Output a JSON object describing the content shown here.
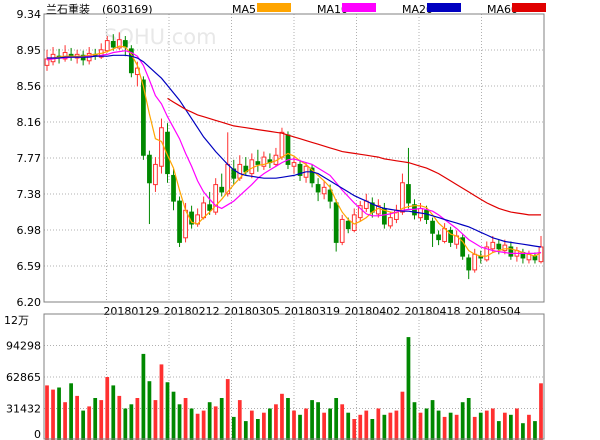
{
  "header": {
    "stock_name": "兰石重装",
    "stock_code": "(603169)",
    "watermark": "SOHU.com"
  },
  "legend": [
    {
      "label": "MA5",
      "color": "#ffa500"
    },
    {
      "label": "MA10",
      "color": "#ff00ff"
    },
    {
      "label": "MA20",
      "color": "#0000c0"
    },
    {
      "label": "MA60",
      "color": "#e00000"
    }
  ],
  "colors": {
    "up": "#ff3030",
    "down": "#008800",
    "grid": "#b0b0b0",
    "border": "#808080"
  },
  "chart_data": [
    {
      "type": "candlestick",
      "y_ticks": [
        "9.34",
        "8.95",
        "8.56",
        "8.16",
        "7.77",
        "7.38",
        "6.98",
        "6.59",
        "6.20"
      ],
      "ylim": [
        6.2,
        9.34
      ],
      "x_ticks": [
        "20180129",
        "20180212",
        "20180305",
        "20180319",
        "20180402",
        "20180418",
        "20180504"
      ],
      "x_tick_index": [
        14,
        24,
        34,
        44,
        54,
        64,
        74
      ],
      "candles": [
        [
          8.78,
          8.85,
          8.95,
          8.72
        ],
        [
          8.82,
          8.9,
          8.98,
          8.78
        ],
        [
          8.88,
          8.86,
          8.96,
          8.8
        ],
        [
          8.85,
          8.92,
          9.0,
          8.82
        ],
        [
          8.9,
          8.88,
          8.97,
          8.83
        ],
        [
          8.86,
          8.9,
          8.95,
          8.8
        ],
        [
          8.89,
          8.84,
          8.94,
          8.78
        ],
        [
          8.83,
          8.91,
          8.98,
          8.79
        ],
        [
          8.9,
          8.88,
          8.96,
          8.84
        ],
        [
          8.87,
          8.95,
          9.02,
          8.85
        ],
        [
          8.94,
          9.05,
          9.1,
          8.92
        ],
        [
          9.04,
          8.98,
          9.12,
          8.94
        ],
        [
          8.97,
          9.06,
          9.14,
          8.95
        ],
        [
          9.05,
          8.98,
          9.1,
          8.88
        ],
        [
          8.96,
          8.7,
          9.0,
          8.65
        ],
        [
          8.68,
          8.75,
          8.82,
          8.55
        ],
        [
          8.62,
          7.8,
          8.66,
          7.75
        ],
        [
          7.8,
          7.5,
          7.85,
          7.05
        ],
        [
          7.48,
          7.7,
          7.78,
          7.4
        ],
        [
          7.68,
          8.1,
          8.2,
          7.6
        ],
        [
          8.05,
          7.6,
          8.15,
          7.5
        ],
        [
          7.58,
          7.3,
          7.65,
          7.2
        ],
        [
          7.3,
          6.85,
          7.35,
          6.8
        ],
        [
          6.9,
          7.2,
          7.28,
          6.85
        ],
        [
          7.18,
          7.05,
          7.25,
          7.0
        ],
        [
          7.05,
          7.15,
          7.22,
          7.02
        ],
        [
          7.12,
          7.28,
          7.35,
          7.1
        ],
        [
          7.26,
          7.2,
          7.4,
          7.15
        ],
        [
          7.18,
          7.48,
          7.55,
          7.15
        ],
        [
          7.45,
          7.4,
          7.6,
          7.35
        ],
        [
          7.38,
          7.7,
          8.05,
          7.35
        ],
        [
          7.65,
          7.55,
          7.75,
          7.48
        ],
        [
          7.55,
          7.7,
          7.8,
          7.52
        ],
        [
          7.68,
          7.62,
          7.78,
          7.58
        ],
        [
          7.6,
          7.75,
          7.82,
          7.55
        ],
        [
          7.73,
          7.7,
          7.86,
          7.62
        ],
        [
          7.68,
          7.78,
          7.84,
          7.64
        ],
        [
          7.75,
          7.72,
          7.82,
          7.66
        ],
        [
          7.7,
          7.8,
          7.88,
          7.68
        ],
        [
          7.78,
          8.05,
          8.1,
          7.75
        ],
        [
          8.02,
          7.7,
          8.06,
          7.65
        ],
        [
          7.68,
          7.72,
          7.78,
          7.6
        ],
        [
          7.7,
          7.58,
          7.75,
          7.52
        ],
        [
          7.56,
          7.68,
          7.72,
          7.5
        ],
        [
          7.66,
          7.5,
          7.7,
          7.45
        ],
        [
          7.48,
          7.4,
          7.55,
          7.3
        ],
        [
          7.38,
          7.45,
          7.52,
          7.32
        ],
        [
          7.42,
          7.3,
          7.48,
          7.22
        ],
        [
          7.28,
          6.85,
          7.32,
          6.75
        ],
        [
          6.85,
          7.1,
          7.15,
          6.82
        ],
        [
          7.08,
          7.0,
          7.12,
          6.95
        ],
        [
          6.98,
          7.15,
          7.22,
          6.96
        ],
        [
          7.12,
          7.25,
          7.3,
          7.08
        ],
        [
          7.22,
          7.3,
          7.38,
          7.18
        ],
        [
          7.28,
          7.18,
          7.34,
          7.12
        ],
        [
          7.16,
          7.25,
          7.32,
          7.12
        ],
        [
          7.22,
          7.05,
          7.28,
          7.0
        ],
        [
          7.03,
          7.12,
          7.18,
          7.0
        ],
        [
          7.1,
          7.2,
          7.26,
          7.06
        ],
        [
          7.18,
          7.5,
          7.6,
          7.15
        ],
        [
          7.48,
          7.28,
          7.88,
          7.22
        ],
        [
          7.26,
          7.15,
          7.32,
          7.1
        ],
        [
          7.12,
          7.22,
          7.28,
          7.08
        ],
        [
          7.2,
          7.1,
          7.25,
          7.05
        ],
        [
          7.08,
          6.95,
          7.12,
          6.8
        ],
        [
          6.93,
          6.88,
          6.98,
          6.82
        ],
        [
          6.86,
          7.0,
          7.06,
          6.84
        ],
        [
          6.98,
          6.85,
          7.02,
          6.8
        ],
        [
          6.83,
          6.92,
          6.98,
          6.78
        ],
        [
          6.9,
          6.7,
          6.94,
          6.66
        ],
        [
          6.68,
          6.55,
          6.72,
          6.45
        ],
        [
          6.55,
          6.72,
          6.78,
          6.52
        ],
        [
          6.7,
          6.68,
          6.76,
          6.62
        ],
        [
          6.66,
          6.8,
          6.86,
          6.64
        ],
        [
          6.78,
          6.85,
          6.92,
          6.74
        ],
        [
          6.83,
          6.78,
          6.88,
          6.72
        ],
        [
          6.76,
          6.82,
          6.88,
          6.72
        ],
        [
          6.8,
          6.7,
          6.86,
          6.66
        ],
        [
          6.7,
          6.76,
          6.8,
          6.64
        ],
        [
          6.74,
          6.68,
          6.78,
          6.62
        ],
        [
          6.66,
          6.72,
          6.76,
          6.62
        ],
        [
          6.7,
          6.66,
          6.74,
          6.62
        ],
        [
          6.64,
          6.8,
          6.92,
          6.62
        ]
      ],
      "ma5": [
        8.85,
        8.86,
        8.87,
        8.88,
        8.88,
        8.88,
        8.88,
        8.89,
        8.9,
        8.91,
        8.93,
        8.96,
        8.99,
        8.98,
        8.9,
        8.78,
        8.55,
        8.25,
        7.98,
        7.95,
        7.8,
        7.66,
        7.42,
        7.2,
        7.07,
        7.05,
        7.12,
        7.18,
        7.25,
        7.32,
        7.4,
        7.48,
        7.55,
        7.62,
        7.66,
        7.69,
        7.7,
        7.72,
        7.74,
        7.78,
        7.82,
        7.79,
        7.74,
        7.7,
        7.64,
        7.58,
        7.52,
        7.45,
        7.3,
        7.18,
        7.1,
        7.05,
        7.08,
        7.12,
        7.18,
        7.22,
        7.2,
        7.18,
        7.17,
        7.22,
        7.24,
        7.25,
        7.25,
        7.23,
        7.15,
        7.06,
        7.0,
        6.94,
        6.92,
        6.86,
        6.76,
        6.72,
        6.7,
        6.7,
        6.74,
        6.76,
        6.78,
        6.78,
        6.76,
        6.74,
        6.72,
        6.7,
        6.74
      ],
      "ma10": [
        8.84,
        8.85,
        8.86,
        8.86,
        8.87,
        8.87,
        8.87,
        8.88,
        8.88,
        8.89,
        8.9,
        8.92,
        8.93,
        8.94,
        8.92,
        8.88,
        8.78,
        8.62,
        8.45,
        8.36,
        8.22,
        8.1,
        7.98,
        7.82,
        7.68,
        7.52,
        7.4,
        7.32,
        7.25,
        7.22,
        7.26,
        7.3,
        7.36,
        7.42,
        7.48,
        7.55,
        7.6,
        7.64,
        7.68,
        7.72,
        7.75,
        7.76,
        7.74,
        7.72,
        7.7,
        7.66,
        7.62,
        7.58,
        7.5,
        7.42,
        7.35,
        7.28,
        7.22,
        7.16,
        7.14,
        7.14,
        7.15,
        7.16,
        7.18,
        7.2,
        7.21,
        7.21,
        7.22,
        7.21,
        7.19,
        7.15,
        7.1,
        7.05,
        7.0,
        6.94,
        6.88,
        6.84,
        6.8,
        6.78,
        6.76,
        6.75,
        6.74,
        6.73,
        6.73,
        6.73,
        6.73,
        6.73,
        6.74
      ],
      "ma20": [
        8.86,
        8.86,
        8.86,
        8.87,
        8.87,
        8.87,
        8.87,
        8.87,
        8.88,
        8.88,
        8.88,
        8.89,
        8.89,
        8.89,
        8.88,
        8.86,
        8.82,
        8.76,
        8.7,
        8.64,
        8.56,
        8.48,
        8.4,
        8.3,
        8.2,
        8.1,
        8.0,
        7.92,
        7.84,
        7.77,
        7.7,
        7.64,
        7.6,
        7.58,
        7.57,
        7.56,
        7.55,
        7.55,
        7.55,
        7.56,
        7.57,
        7.58,
        7.6,
        7.62,
        7.62,
        7.6,
        7.56,
        7.52,
        7.48,
        7.44,
        7.4,
        7.36,
        7.33,
        7.3,
        7.27,
        7.24,
        7.22,
        7.21,
        7.2,
        7.19,
        7.19,
        7.18,
        7.17,
        7.16,
        7.14,
        7.12,
        7.1,
        7.08,
        7.06,
        7.04,
        7.02,
        6.99,
        6.96,
        6.93,
        6.9,
        6.88,
        6.86,
        6.85,
        6.84,
        6.83,
        6.82,
        6.81,
        6.8
      ],
      "ma60": [
        null,
        null,
        null,
        null,
        null,
        null,
        null,
        null,
        null,
        null,
        null,
        null,
        null,
        null,
        null,
        null,
        null,
        null,
        null,
        null,
        8.42,
        8.38,
        8.34,
        8.3,
        8.27,
        8.24,
        8.22,
        8.2,
        8.18,
        8.16,
        8.14,
        8.12,
        8.11,
        8.1,
        8.09,
        8.08,
        8.07,
        8.06,
        8.05,
        8.04,
        8.02,
        8.0,
        7.98,
        7.96,
        7.94,
        7.92,
        7.9,
        7.88,
        7.86,
        7.84,
        7.83,
        7.82,
        7.81,
        7.8,
        7.79,
        7.78,
        7.76,
        7.75,
        7.74,
        7.73,
        7.72,
        7.7,
        7.68,
        7.66,
        7.63,
        7.6,
        7.56,
        7.52,
        7.48,
        7.44,
        7.4,
        7.36,
        7.32,
        7.28,
        7.25,
        7.22,
        7.2,
        7.18,
        7.17,
        7.16,
        7.15,
        7.15,
        7.15
      ]
    },
    {
      "type": "bar",
      "unit_label": "12万",
      "y_ticks": [
        "94298",
        "62865",
        "31432",
        "0"
      ],
      "ylim": [
        0,
        120000
      ],
      "volumes": [
        52000,
        48000,
        50000,
        36000,
        54000,
        42000,
        28000,
        32000,
        40000,
        38000,
        60000,
        52000,
        42000,
        30000,
        34000,
        40000,
        82000,
        56000,
        38000,
        72000,
        55000,
        46000,
        34000,
        40000,
        30000,
        25000,
        28000,
        36000,
        32000,
        40000,
        58000,
        22000,
        38000,
        18000,
        28000,
        20000,
        26000,
        30000,
        34000,
        44000,
        40000,
        28000,
        24000,
        30000,
        38000,
        36000,
        26000,
        30000,
        40000,
        34000,
        26000,
        20000,
        24000,
        28000,
        20000,
        30000,
        24000,
        26000,
        28000,
        46000,
        98000,
        36000,
        26000,
        30000,
        38000,
        28000,
        22000,
        26000,
        24000,
        36000,
        40000,
        22000,
        26000,
        28000,
        30000,
        18000,
        26000,
        24000,
        30000,
        16000,
        24000,
        18000,
        54000
      ]
    }
  ]
}
